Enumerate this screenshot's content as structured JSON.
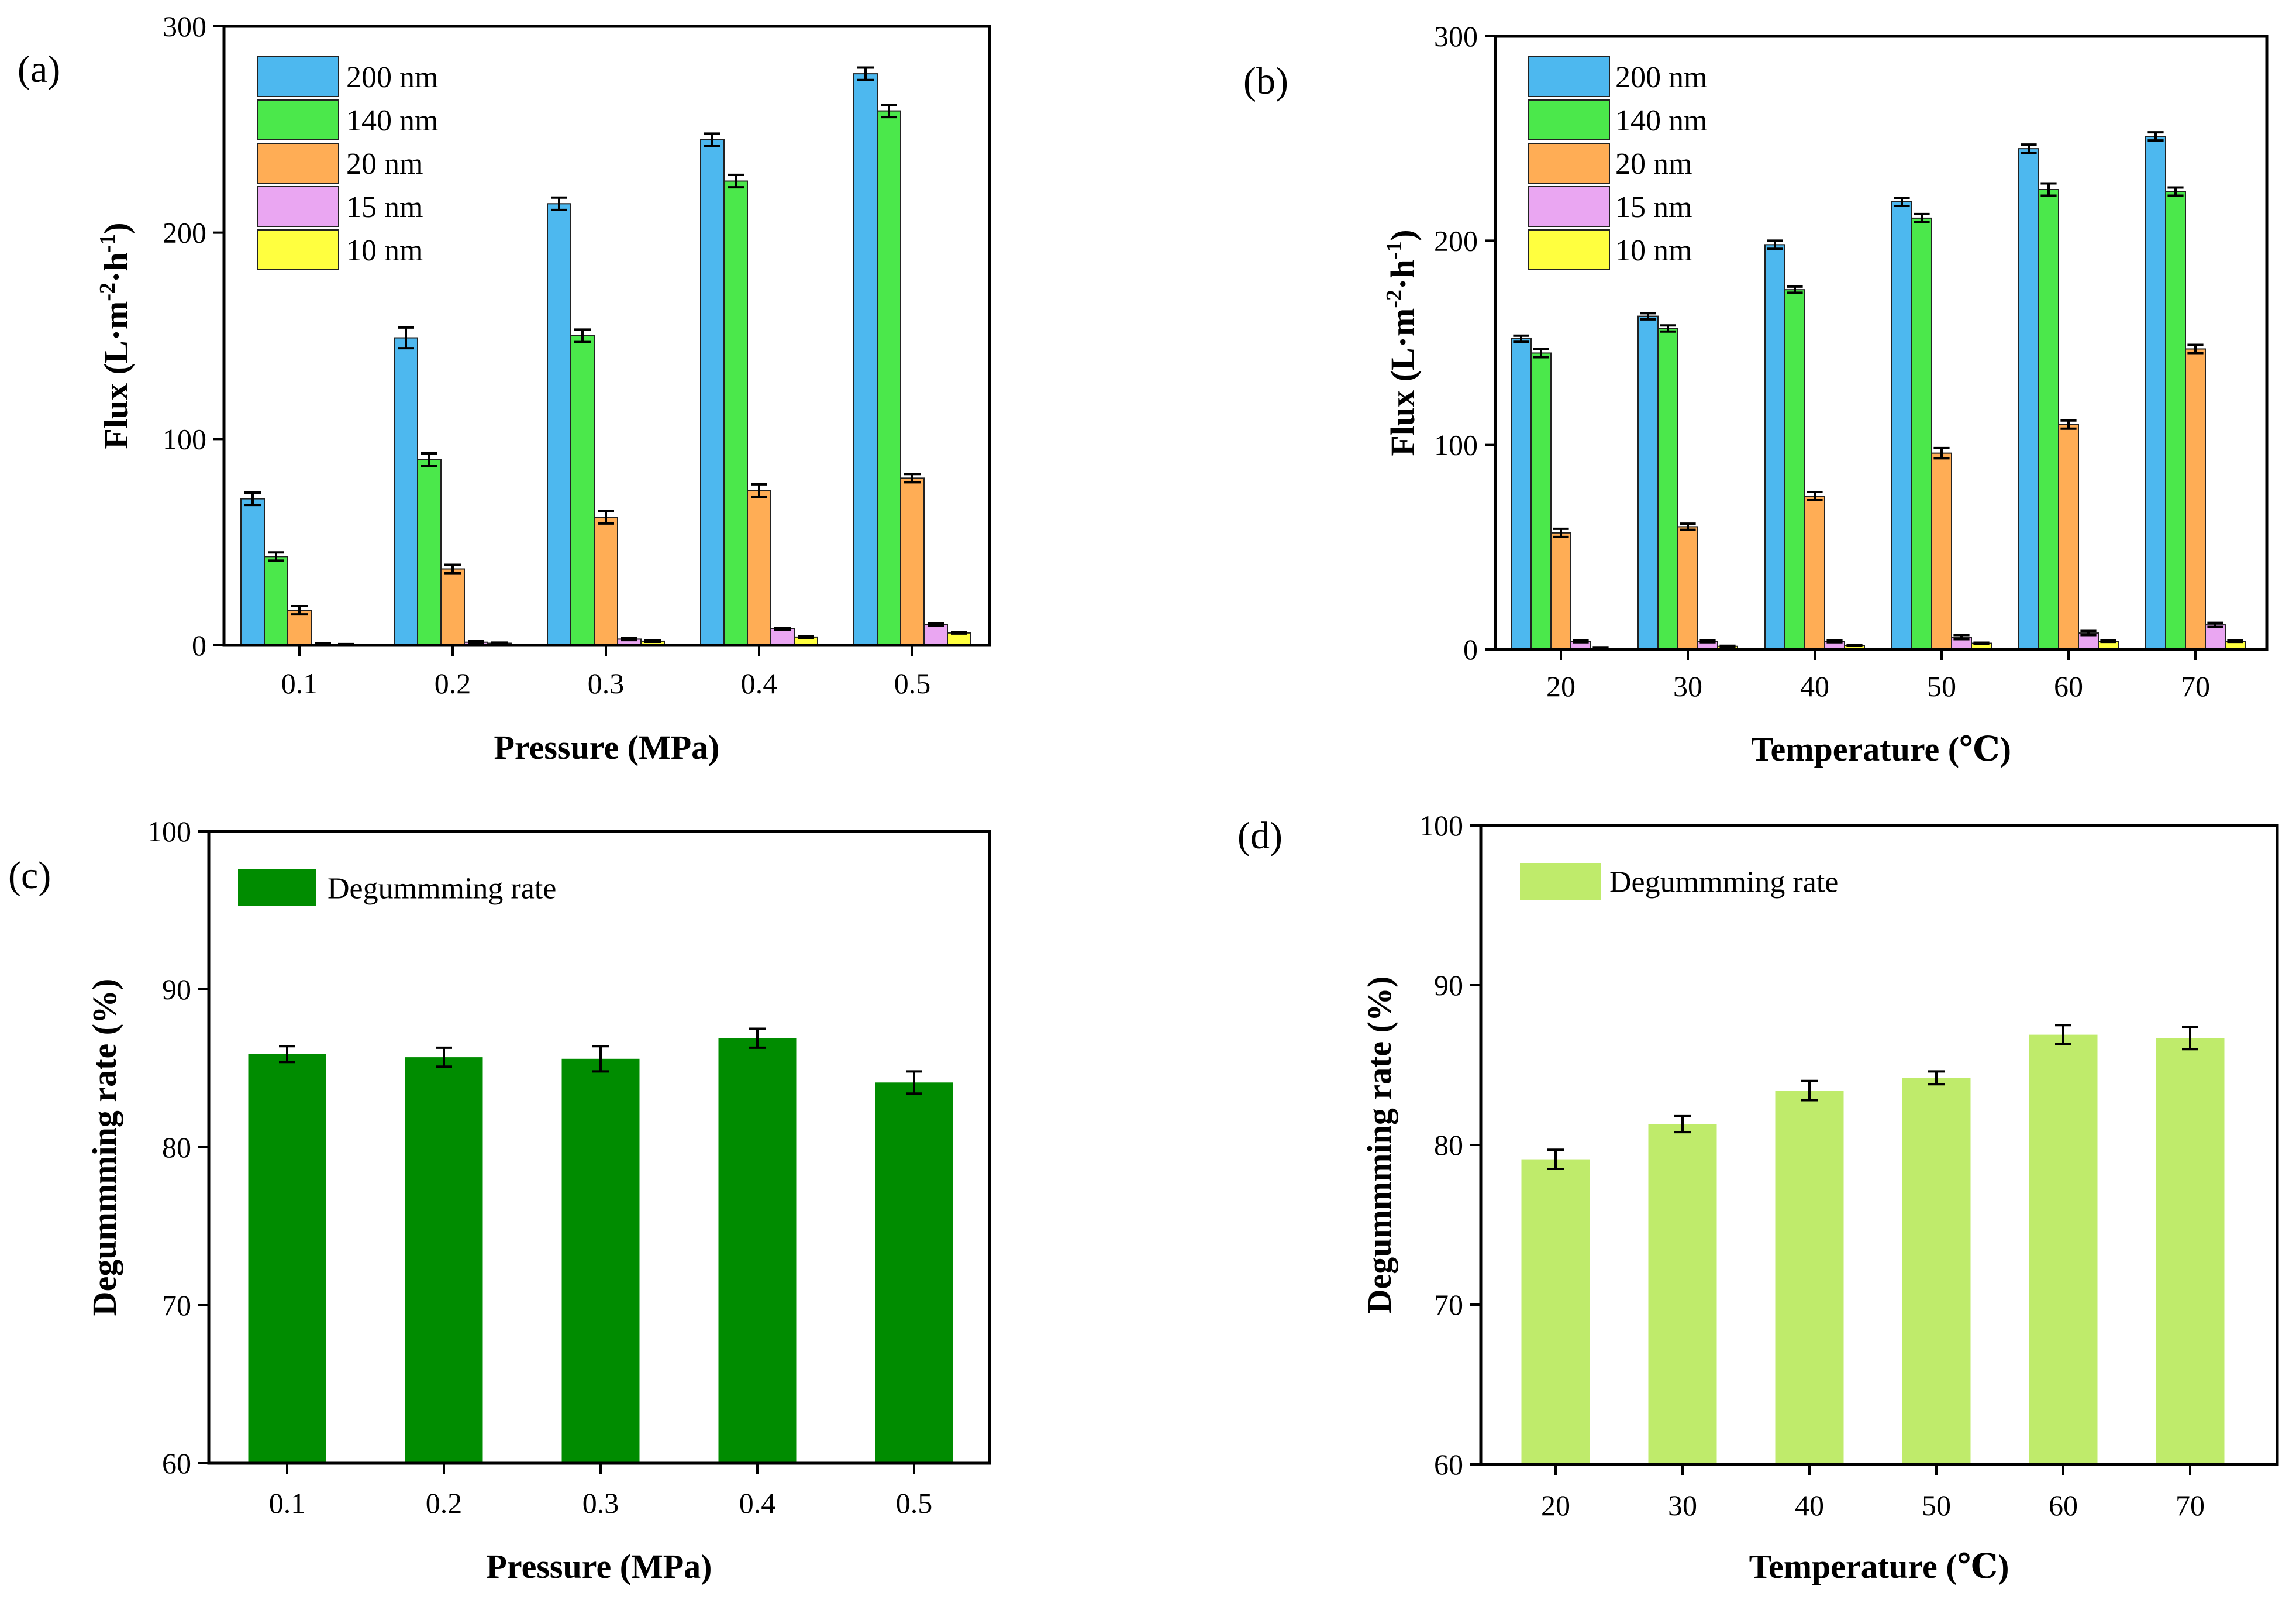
{
  "figure": {
    "palette": {
      "200 nm": "#4db8ef",
      "140 nm": "#4be84b",
      "20 nm": "#ffad55",
      "15 nm": "#eaa6f2",
      "10 nm": "#ffff3f",
      "Degummming rate (c)": "#008c00",
      "Degummming rate (d)": "#bfeb6b"
    }
  },
  "chart_data": [
    {
      "id": "a",
      "panel_label": "(a)",
      "type": "bar",
      "title": "",
      "xlabel": "Pressure (MPa)",
      "ylabel_parts": [
        "Flux (L·m",
        "-2",
        "·h",
        "-1",
        ")"
      ],
      "categories": [
        "0.1",
        "0.2",
        "0.3",
        "0.4",
        "0.5"
      ],
      "ylim": [
        0,
        300
      ],
      "yticks": [
        0,
        100,
        200,
        300
      ],
      "ytick_labels": [
        "0",
        "100",
        "200",
        "300"
      ],
      "legend_position": "top-left",
      "series": [
        {
          "name": "200 nm",
          "values": [
            71,
            149,
            214,
            245,
            277
          ],
          "errors": [
            3,
            5,
            3,
            3,
            3
          ]
        },
        {
          "name": "140 nm",
          "values": [
            43,
            90,
            150,
            225,
            259
          ],
          "errors": [
            2,
            3,
            3,
            3,
            3
          ]
        },
        {
          "name": "20 nm",
          "values": [
            17,
            37,
            62,
            75,
            81
          ],
          "errors": [
            2,
            2,
            3,
            3,
            2
          ]
        },
        {
          "name": "15 nm",
          "values": [
            0.5,
            1.5,
            3,
            8,
            10
          ],
          "errors": [
            0.5,
            0.5,
            0.5,
            0.5,
            0.5
          ]
        },
        {
          "name": "10 nm",
          "values": [
            0.3,
            1,
            2,
            4,
            6
          ],
          "errors": [
            0.3,
            0.3,
            0.3,
            0.3,
            0.3
          ]
        }
      ]
    },
    {
      "id": "b",
      "panel_label": "(b)",
      "type": "bar",
      "title": "",
      "xlabel": "Temperature (℃)",
      "ylabel_parts": [
        "Flux (L·m",
        "-2",
        "·h",
        "-1",
        ")"
      ],
      "categories": [
        "20",
        "30",
        "40",
        "50",
        "60",
        "70"
      ],
      "ylim": [
        0,
        300
      ],
      "yticks": [
        0,
        100,
        200,
        300
      ],
      "ytick_labels": [
        "0",
        "100",
        "200",
        "300"
      ],
      "legend_position": "top-left",
      "series": [
        {
          "name": "200 nm",
          "values": [
            152,
            163,
            198,
            219,
            245,
            251
          ],
          "errors": [
            1.5,
            1.5,
            2,
            2,
            2,
            2
          ]
        },
        {
          "name": "140 nm",
          "values": [
            145,
            157,
            176,
            211,
            225,
            224
          ],
          "errors": [
            2,
            1.5,
            1.5,
            2,
            3,
            2
          ]
        },
        {
          "name": "20 nm",
          "values": [
            57,
            60,
            75,
            96,
            110,
            147
          ],
          "errors": [
            2,
            1.5,
            2,
            2.5,
            2,
            2
          ]
        },
        {
          "name": "15 nm",
          "values": [
            4,
            4,
            4,
            6,
            8,
            12
          ],
          "errors": [
            0.5,
            0.5,
            0.5,
            1,
            1,
            1
          ]
        },
        {
          "name": "10 nm",
          "values": [
            0.5,
            1.5,
            2,
            3,
            4,
            4
          ],
          "errors": [
            0.3,
            0.3,
            0.3,
            0.3,
            0.3,
            0.3
          ]
        }
      ]
    },
    {
      "id": "c",
      "panel_label": "(c)",
      "type": "bar",
      "title": "",
      "xlabel": "Pressure (MPa)",
      "ylabel_parts": [
        "Degummming rate (%)"
      ],
      "categories": [
        "0.1",
        "0.2",
        "0.3",
        "0.4",
        "0.5"
      ],
      "ylim": [
        60,
        100
      ],
      "yticks": [
        60,
        70,
        80,
        90,
        100
      ],
      "ytick_labels": [
        "60",
        "70",
        "80",
        "90",
        "100"
      ],
      "legend_position": "top-left",
      "series": [
        {
          "name": "Degummming rate",
          "values": [
            85.9,
            85.7,
            85.6,
            86.9,
            84.1
          ],
          "errors": [
            0.5,
            0.6,
            0.8,
            0.6,
            0.7
          ]
        }
      ]
    },
    {
      "id": "d",
      "panel_label": "(d)",
      "type": "bar",
      "title": "",
      "xlabel": "Temperature (℃)",
      "ylabel_parts": [
        "Degummming rate (%)"
      ],
      "categories": [
        "20",
        "30",
        "40",
        "50",
        "60",
        "70"
      ],
      "ylim": [
        60,
        100
      ],
      "yticks": [
        60,
        70,
        80,
        90,
        100
      ],
      "ytick_labels": [
        "60",
        "70",
        "80",
        "90",
        "100"
      ],
      "legend_position": "top-left",
      "series": [
        {
          "name": "Degummming rate",
          "values": [
            79.1,
            81.3,
            83.4,
            84.2,
            86.9,
            86.7
          ],
          "errors": [
            0.6,
            0.5,
            0.6,
            0.4,
            0.6,
            0.7
          ]
        }
      ]
    }
  ]
}
